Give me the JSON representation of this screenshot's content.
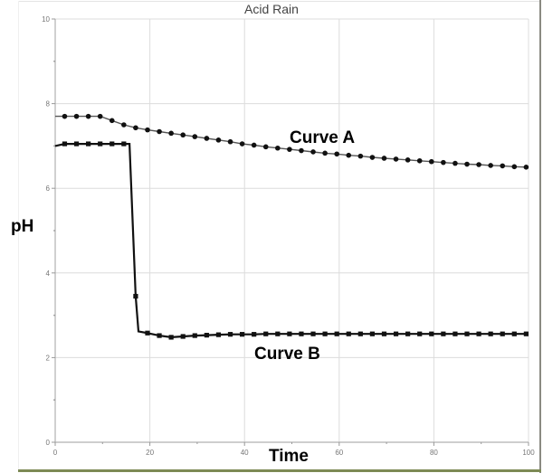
{
  "chart_data": {
    "type": "line",
    "title": "Acid Rain",
    "xlabel": "Time",
    "ylabel": "pH",
    "xlim": [
      0,
      100
    ],
    "ylim": [
      0,
      10
    ],
    "x_ticks": [
      0,
      20,
      40,
      60,
      80,
      100
    ],
    "y_ticks": [
      0,
      2,
      4,
      6,
      8,
      10
    ],
    "grid": true,
    "legend": "none (inline annotations)",
    "annotations": [
      {
        "text": "Curve A",
        "x": 55,
        "y": 7.1
      },
      {
        "text": "Curve B",
        "x": 47,
        "y": 2.0
      }
    ],
    "series": [
      {
        "name": "Curve A",
        "marker": "small circle",
        "x": [
          0,
          2,
          4.5,
          7,
          9.5,
          12,
          14.5,
          17,
          19.5,
          22,
          24.5,
          27,
          29.5,
          32,
          34.5,
          37,
          39.5,
          42,
          44.5,
          47,
          49.5,
          52,
          54.5,
          57,
          59.5,
          62,
          64.5,
          67,
          69.5,
          72,
          74.5,
          77,
          79.5,
          82,
          84.5,
          87,
          89.5,
          92,
          94.5,
          97,
          99.5
        ],
        "values": [
          7.7,
          7.7,
          7.7,
          7.7,
          7.7,
          7.6,
          7.5,
          7.43,
          7.38,
          7.34,
          7.3,
          7.26,
          7.22,
          7.18,
          7.14,
          7.1,
          7.05,
          7.02,
          6.98,
          6.95,
          6.92,
          6.89,
          6.86,
          6.83,
          6.81,
          6.78,
          6.76,
          6.73,
          6.71,
          6.69,
          6.67,
          6.65,
          6.63,
          6.61,
          6.59,
          6.57,
          6.56,
          6.54,
          6.53,
          6.51,
          6.5
        ]
      },
      {
        "name": "Curve B",
        "marker": "small square",
        "x": [
          0,
          2,
          4.5,
          7,
          9.5,
          12,
          14.5,
          15.7,
          17,
          17.6,
          19.5,
          22,
          24.5,
          27,
          29.5,
          32,
          34.5,
          37,
          39.5,
          42,
          44.5,
          47,
          49.5,
          52,
          54.5,
          57,
          59.5,
          62,
          64.5,
          67,
          69.5,
          72,
          74.5,
          77,
          79.5,
          82,
          84.5,
          87,
          89.5,
          92,
          94.5,
          97,
          99.5
        ],
        "values": [
          7.0,
          7.05,
          7.05,
          7.05,
          7.05,
          7.05,
          7.05,
          7.05,
          3.45,
          2.62,
          2.58,
          2.52,
          2.48,
          2.5,
          2.52,
          2.53,
          2.54,
          2.55,
          2.55,
          2.55,
          2.56,
          2.56,
          2.56,
          2.56,
          2.56,
          2.56,
          2.56,
          2.56,
          2.56,
          2.56,
          2.56,
          2.56,
          2.56,
          2.56,
          2.56,
          2.56,
          2.56,
          2.56,
          2.56,
          2.56,
          2.56,
          2.56,
          2.56
        ]
      }
    ]
  }
}
